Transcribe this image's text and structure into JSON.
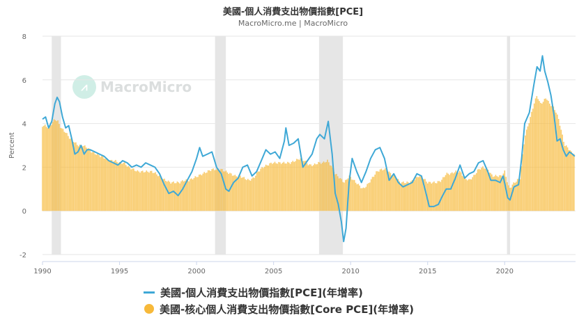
{
  "title": "美國-個人消費支出物價指數[PCE]",
  "subtitle": "MacroMicro.me | MacroMicro",
  "watermark": "MacroMicro",
  "legend": [
    {
      "label": "美國-個人消費支出物價指數[PCE](年增率)",
      "color": "#3ea8d6"
    },
    {
      "label": "美國-核心個人消費支出物價指數[Core PCE](年增率)",
      "color": "#f7b93a"
    }
  ],
  "chart_data": {
    "type": "bar+line",
    "ylabel": "Percent",
    "ylim": [
      -2,
      8
    ],
    "yticks": [
      -2,
      0,
      2,
      4,
      6,
      8
    ],
    "xlim": [
      1990,
      2024.6
    ],
    "xticks": [
      1990,
      1995,
      2000,
      2005,
      2010,
      2015,
      2020
    ],
    "recessions": [
      [
        1990.6,
        1991.2
      ],
      [
        2001.2,
        2001.9
      ],
      [
        2007.95,
        2009.5
      ],
      [
        2020.15,
        2020.35
      ]
    ],
    "series": [
      {
        "name": "美國-個人消費支出物價指數[PCE](年增率)",
        "type": "line",
        "color": "#3ea8d6",
        "points": [
          [
            1990.0,
            4.2
          ],
          [
            1990.2,
            4.3
          ],
          [
            1990.4,
            3.8
          ],
          [
            1990.6,
            4.1
          ],
          [
            1990.8,
            4.9
          ],
          [
            1990.95,
            5.2
          ],
          [
            1991.1,
            5.0
          ],
          [
            1991.3,
            4.3
          ],
          [
            1991.5,
            3.8
          ],
          [
            1991.7,
            3.9
          ],
          [
            1991.9,
            3.3
          ],
          [
            1992.1,
            2.6
          ],
          [
            1992.3,
            2.7
          ],
          [
            1992.5,
            3.0
          ],
          [
            1992.7,
            2.6
          ],
          [
            1992.9,
            2.8
          ],
          [
            1993.1,
            2.8
          ],
          [
            1993.4,
            2.7
          ],
          [
            1993.7,
            2.6
          ],
          [
            1994.0,
            2.5
          ],
          [
            1994.3,
            2.3
          ],
          [
            1994.6,
            2.2
          ],
          [
            1994.9,
            2.1
          ],
          [
            1995.2,
            2.3
          ],
          [
            1995.5,
            2.2
          ],
          [
            1995.8,
            2.0
          ],
          [
            1996.1,
            2.1
          ],
          [
            1996.4,
            2.0
          ],
          [
            1996.7,
            2.2
          ],
          [
            1997.0,
            2.1
          ],
          [
            1997.3,
            2.0
          ],
          [
            1997.6,
            1.7
          ],
          [
            1997.9,
            1.2
          ],
          [
            1998.2,
            0.8
          ],
          [
            1998.5,
            0.9
          ],
          [
            1998.8,
            0.7
          ],
          [
            1999.1,
            1.0
          ],
          [
            1999.4,
            1.4
          ],
          [
            1999.7,
            1.8
          ],
          [
            2000.0,
            2.4
          ],
          [
            2000.2,
            2.9
          ],
          [
            2000.4,
            2.5
          ],
          [
            2000.7,
            2.6
          ],
          [
            2001.0,
            2.7
          ],
          [
            2001.3,
            2.0
          ],
          [
            2001.6,
            1.7
          ],
          [
            2001.9,
            1.0
          ],
          [
            2002.1,
            0.9
          ],
          [
            2002.4,
            1.3
          ],
          [
            2002.7,
            1.5
          ],
          [
            2003.0,
            2.0
          ],
          [
            2003.3,
            2.1
          ],
          [
            2003.6,
            1.6
          ],
          [
            2003.9,
            1.8
          ],
          [
            2004.2,
            2.3
          ],
          [
            2004.5,
            2.8
          ],
          [
            2004.8,
            2.6
          ],
          [
            2005.1,
            2.7
          ],
          [
            2005.4,
            2.4
          ],
          [
            2005.7,
            3.2
          ],
          [
            2005.8,
            3.8
          ],
          [
            2006.0,
            3.0
          ],
          [
            2006.3,
            3.1
          ],
          [
            2006.6,
            3.3
          ],
          [
            2006.9,
            2.0
          ],
          [
            2007.2,
            2.3
          ],
          [
            2007.5,
            2.6
          ],
          [
            2007.8,
            3.3
          ],
          [
            2008.0,
            3.5
          ],
          [
            2008.3,
            3.3
          ],
          [
            2008.55,
            4.1
          ],
          [
            2008.8,
            2.6
          ],
          [
            2009.0,
            0.8
          ],
          [
            2009.2,
            0.3
          ],
          [
            2009.4,
            -0.5
          ],
          [
            2009.55,
            -1.4
          ],
          [
            2009.7,
            -0.8
          ],
          [
            2009.9,
            1.3
          ],
          [
            2010.1,
            2.4
          ],
          [
            2010.4,
            1.8
          ],
          [
            2010.7,
            1.3
          ],
          [
            2011.0,
            1.8
          ],
          [
            2011.3,
            2.4
          ],
          [
            2011.6,
            2.8
          ],
          [
            2011.9,
            2.9
          ],
          [
            2012.2,
            2.4
          ],
          [
            2012.5,
            1.4
          ],
          [
            2012.8,
            1.7
          ],
          [
            2013.1,
            1.3
          ],
          [
            2013.4,
            1.1
          ],
          [
            2013.7,
            1.2
          ],
          [
            2014.0,
            1.3
          ],
          [
            2014.3,
            1.7
          ],
          [
            2014.6,
            1.6
          ],
          [
            2014.9,
            0.8
          ],
          [
            2015.1,
            0.2
          ],
          [
            2015.4,
            0.2
          ],
          [
            2015.7,
            0.3
          ],
          [
            2015.9,
            0.6
          ],
          [
            2016.2,
            1.0
          ],
          [
            2016.5,
            1.0
          ],
          [
            2016.8,
            1.5
          ],
          [
            2017.1,
            2.1
          ],
          [
            2017.4,
            1.5
          ],
          [
            2017.7,
            1.7
          ],
          [
            2018.0,
            1.8
          ],
          [
            2018.3,
            2.2
          ],
          [
            2018.6,
            2.3
          ],
          [
            2018.9,
            1.8
          ],
          [
            2019.1,
            1.4
          ],
          [
            2019.4,
            1.4
          ],
          [
            2019.7,
            1.3
          ],
          [
            2019.9,
            1.6
          ],
          [
            2020.2,
            0.6
          ],
          [
            2020.35,
            0.5
          ],
          [
            2020.6,
            1.1
          ],
          [
            2020.9,
            1.2
          ],
          [
            2021.1,
            2.4
          ],
          [
            2021.3,
            4.0
          ],
          [
            2021.6,
            4.5
          ],
          [
            2021.9,
            5.8
          ],
          [
            2022.1,
            6.6
          ],
          [
            2022.3,
            6.4
          ],
          [
            2022.45,
            7.1
          ],
          [
            2022.6,
            6.4
          ],
          [
            2022.8,
            5.9
          ],
          [
            2023.0,
            5.3
          ],
          [
            2023.2,
            4.4
          ],
          [
            2023.4,
            3.2
          ],
          [
            2023.6,
            3.3
          ],
          [
            2023.8,
            2.8
          ],
          [
            2024.0,
            2.5
          ],
          [
            2024.2,
            2.7
          ],
          [
            2024.4,
            2.6
          ],
          [
            2024.55,
            2.5
          ]
        ]
      },
      {
        "name": "美國-核心個人消費支出物價指數[Core PCE](年增率)",
        "type": "bar",
        "color": "#f7b93a",
        "points": [
          [
            1990.0,
            3.9
          ],
          [
            1990.2,
            3.9
          ],
          [
            1990.4,
            3.8
          ],
          [
            1990.6,
            4.0
          ],
          [
            1990.8,
            4.2
          ],
          [
            1991.0,
            4.1
          ],
          [
            1991.2,
            3.8
          ],
          [
            1991.5,
            3.6
          ],
          [
            1991.8,
            3.3
          ],
          [
            1992.0,
            3.2
          ],
          [
            1992.3,
            3.0
          ],
          [
            1992.6,
            3.0
          ],
          [
            1992.9,
            2.9
          ],
          [
            1993.2,
            2.7
          ],
          [
            1993.5,
            2.6
          ],
          [
            1993.8,
            2.5
          ],
          [
            1994.1,
            2.4
          ],
          [
            1994.4,
            2.3
          ],
          [
            1994.7,
            2.3
          ],
          [
            1995.0,
            2.2
          ],
          [
            1995.3,
            2.2
          ],
          [
            1995.6,
            2.0
          ],
          [
            1995.9,
            1.9
          ],
          [
            1996.2,
            1.8
          ],
          [
            1996.5,
            1.8
          ],
          [
            1996.8,
            1.8
          ],
          [
            1997.1,
            1.8
          ],
          [
            1997.4,
            1.7
          ],
          [
            1997.7,
            1.5
          ],
          [
            1998.0,
            1.4
          ],
          [
            1998.3,
            1.3
          ],
          [
            1998.6,
            1.3
          ],
          [
            1998.9,
            1.3
          ],
          [
            1999.2,
            1.4
          ],
          [
            1999.5,
            1.4
          ],
          [
            1999.8,
            1.5
          ],
          [
            2000.1,
            1.6
          ],
          [
            2000.4,
            1.7
          ],
          [
            2000.7,
            1.8
          ],
          [
            2001.0,
            1.9
          ],
          [
            2001.3,
            1.9
          ],
          [
            2001.6,
            1.9
          ],
          [
            2001.9,
            1.8
          ],
          [
            2002.2,
            1.7
          ],
          [
            2002.5,
            1.6
          ],
          [
            2002.8,
            1.6
          ],
          [
            2003.1,
            1.5
          ],
          [
            2003.4,
            1.4
          ],
          [
            2003.7,
            1.5
          ],
          [
            2004.0,
            1.8
          ],
          [
            2004.3,
            2.0
          ],
          [
            2004.6,
            2.1
          ],
          [
            2004.9,
            2.2
          ],
          [
            2005.2,
            2.2
          ],
          [
            2005.5,
            2.2
          ],
          [
            2005.8,
            2.2
          ],
          [
            2006.1,
            2.2
          ],
          [
            2006.4,
            2.3
          ],
          [
            2006.7,
            2.4
          ],
          [
            2007.0,
            2.3
          ],
          [
            2007.3,
            2.1
          ],
          [
            2007.6,
            2.1
          ],
          [
            2007.9,
            2.2
          ],
          [
            2008.2,
            2.2
          ],
          [
            2008.5,
            2.3
          ],
          [
            2008.8,
            2.0
          ],
          [
            2009.0,
            1.7
          ],
          [
            2009.3,
            1.5
          ],
          [
            2009.6,
            1.3
          ],
          [
            2009.9,
            1.6
          ],
          [
            2010.2,
            1.4
          ],
          [
            2010.5,
            1.2
          ],
          [
            2010.8,
            1.0
          ],
          [
            2011.1,
            1.2
          ],
          [
            2011.4,
            1.5
          ],
          [
            2011.7,
            1.8
          ],
          [
            2012.0,
            1.9
          ],
          [
            2012.3,
            1.9
          ],
          [
            2012.6,
            1.7
          ],
          [
            2012.9,
            1.6
          ],
          [
            2013.2,
            1.3
          ],
          [
            2013.5,
            1.3
          ],
          [
            2013.8,
            1.3
          ],
          [
            2014.1,
            1.4
          ],
          [
            2014.4,
            1.6
          ],
          [
            2014.7,
            1.5
          ],
          [
            2015.0,
            1.3
          ],
          [
            2015.3,
            1.3
          ],
          [
            2015.6,
            1.3
          ],
          [
            2015.9,
            1.4
          ],
          [
            2016.2,
            1.7
          ],
          [
            2016.5,
            1.7
          ],
          [
            2016.8,
            1.8
          ],
          [
            2017.1,
            1.8
          ],
          [
            2017.4,
            1.5
          ],
          [
            2017.7,
            1.4
          ],
          [
            2018.0,
            1.6
          ],
          [
            2018.3,
            1.9
          ],
          [
            2018.6,
            2.0
          ],
          [
            2018.9,
            1.9
          ],
          [
            2019.2,
            1.6
          ],
          [
            2019.5,
            1.6
          ],
          [
            2019.8,
            1.6
          ],
          [
            2020.0,
            1.8
          ],
          [
            2020.3,
            1.0
          ],
          [
            2020.5,
            1.2
          ],
          [
            2020.8,
            1.4
          ],
          [
            2021.0,
            1.5
          ],
          [
            2021.3,
            3.4
          ],
          [
            2021.6,
            4.1
          ],
          [
            2021.9,
            4.9
          ],
          [
            2022.1,
            5.3
          ],
          [
            2022.3,
            4.9
          ],
          [
            2022.5,
            5.0
          ],
          [
            2022.7,
            5.2
          ],
          [
            2022.9,
            4.9
          ],
          [
            2023.1,
            4.8
          ],
          [
            2023.3,
            4.6
          ],
          [
            2023.5,
            4.2
          ],
          [
            2023.7,
            3.6
          ],
          [
            2023.9,
            3.0
          ],
          [
            2024.1,
            2.9
          ],
          [
            2024.3,
            2.7
          ],
          [
            2024.55,
            2.6
          ]
        ]
      }
    ]
  }
}
